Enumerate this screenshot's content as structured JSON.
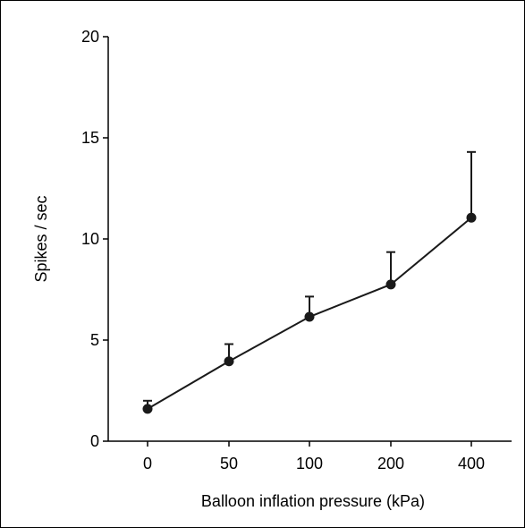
{
  "chart_data": {
    "type": "line",
    "title": "",
    "xlabel": "Balloon inflation pressure (kPa)",
    "ylabel": "Spikes / sec",
    "categories": [
      "0",
      "50",
      "100",
      "200",
      "400"
    ],
    "series": [
      {
        "values": [
          1.6,
          3.95,
          6.15,
          7.75,
          11.05
        ],
        "error_upper": [
          0.4,
          0.85,
          1.0,
          1.6,
          3.25
        ],
        "color": "#1a1a1a"
      }
    ],
    "ylim": [
      0,
      20
    ],
    "yticks": [
      "0",
      "5",
      "10",
      "15",
      "20"
    ],
    "grid": false,
    "legend": "none"
  }
}
